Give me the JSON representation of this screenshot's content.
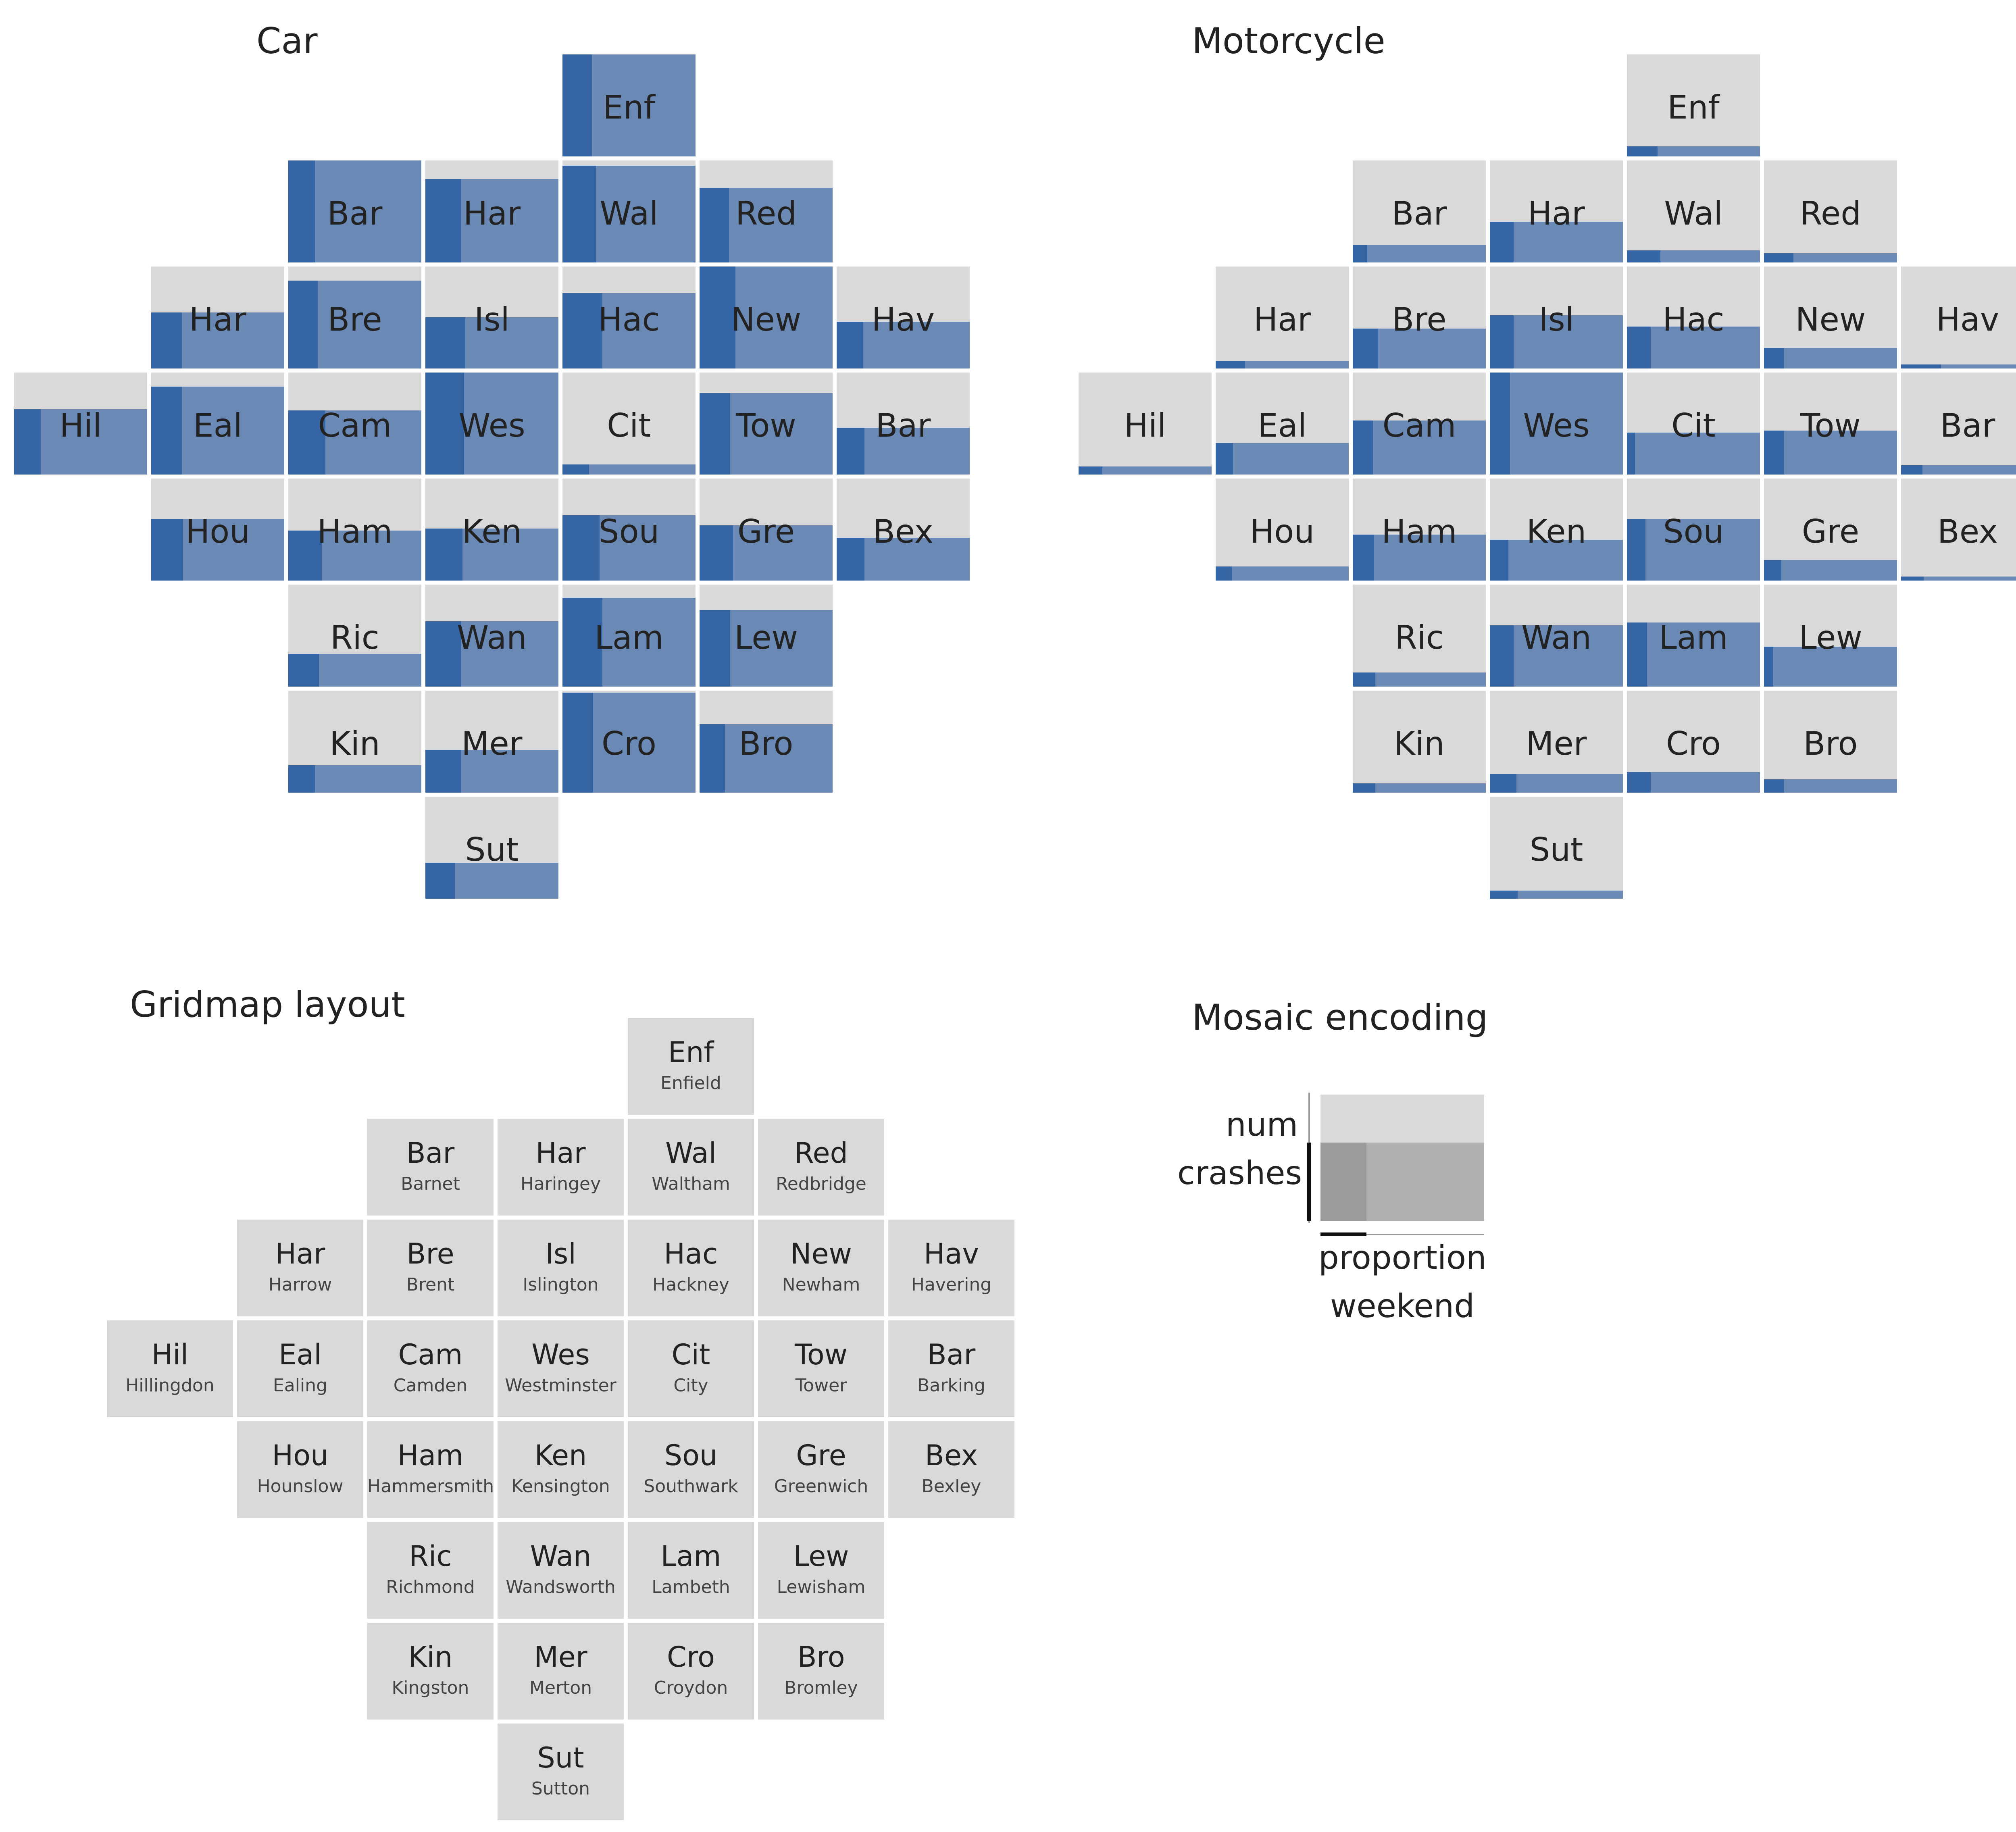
{
  "colors": {
    "tile_background": "#d9d9d9",
    "tile_border": "#ffffff",
    "mosaic_total": "#6a89b5",
    "mosaic_weekend": "#3565a4",
    "legend_total": "#b0b0b0",
    "legend_weekend": "#9b9b9b",
    "text": "#222222"
  },
  "chart_data": [
    {
      "type": "gridmap-mosaic",
      "title": "Car",
      "encoding": {
        "height": "num crashes (relative to max)",
        "width_dark": "proportion weekend"
      },
      "cells": [
        {
          "abbr": "Enf",
          "row": 0,
          "col": 4,
          "num": 1.0,
          "weekend": 0.22
        },
        {
          "abbr": "Bar",
          "row": 1,
          "col": 2,
          "num": 1.0,
          "weekend": 0.2
        },
        {
          "abbr": "Har",
          "row": 1,
          "col": 3,
          "num": 0.82,
          "weekend": 0.27
        },
        {
          "abbr": "Wal",
          "row": 1,
          "col": 4,
          "num": 0.95,
          "weekend": 0.25
        },
        {
          "abbr": "Red",
          "row": 1,
          "col": 5,
          "num": 0.73,
          "weekend": 0.22
        },
        {
          "abbr": "Har",
          "row": 2,
          "col": 1,
          "num": 0.55,
          "weekend": 0.23
        },
        {
          "abbr": "Bre",
          "row": 2,
          "col": 2,
          "num": 0.86,
          "weekend": 0.22
        },
        {
          "abbr": "Isl",
          "row": 2,
          "col": 3,
          "num": 0.5,
          "weekend": 0.3
        },
        {
          "abbr": "Hac",
          "row": 2,
          "col": 4,
          "num": 0.74,
          "weekend": 0.3
        },
        {
          "abbr": "New",
          "row": 2,
          "col": 5,
          "num": 1.0,
          "weekend": 0.27
        },
        {
          "abbr": "Hav",
          "row": 2,
          "col": 6,
          "num": 0.46,
          "weekend": 0.2
        },
        {
          "abbr": "Hil",
          "row": 3,
          "col": 0,
          "num": 0.64,
          "weekend": 0.2
        },
        {
          "abbr": "Eal",
          "row": 3,
          "col": 1,
          "num": 0.86,
          "weekend": 0.23
        },
        {
          "abbr": "Cam",
          "row": 3,
          "col": 2,
          "num": 0.63,
          "weekend": 0.28
        },
        {
          "abbr": "Wes",
          "row": 3,
          "col": 3,
          "num": 1.0,
          "weekend": 0.29
        },
        {
          "abbr": "Cit",
          "row": 3,
          "col": 4,
          "num": 0.1,
          "weekend": 0.2
        },
        {
          "abbr": "Tow",
          "row": 3,
          "col": 5,
          "num": 0.8,
          "weekend": 0.23
        },
        {
          "abbr": "Bar",
          "row": 3,
          "col": 6,
          "num": 0.46,
          "weekend": 0.21
        },
        {
          "abbr": "Hou",
          "row": 4,
          "col": 1,
          "num": 0.6,
          "weekend": 0.24
        },
        {
          "abbr": "Ham",
          "row": 4,
          "col": 2,
          "num": 0.49,
          "weekend": 0.25
        },
        {
          "abbr": "Ken",
          "row": 4,
          "col": 3,
          "num": 0.51,
          "weekend": 0.28
        },
        {
          "abbr": "Sou",
          "row": 4,
          "col": 4,
          "num": 0.64,
          "weekend": 0.28
        },
        {
          "abbr": "Gre",
          "row": 4,
          "col": 5,
          "num": 0.54,
          "weekend": 0.25
        },
        {
          "abbr": "Bex",
          "row": 4,
          "col": 6,
          "num": 0.42,
          "weekend": 0.21
        },
        {
          "abbr": "Ric",
          "row": 5,
          "col": 2,
          "num": 0.32,
          "weekend": 0.23
        },
        {
          "abbr": "Wan",
          "row": 5,
          "col": 3,
          "num": 0.64,
          "weekend": 0.27
        },
        {
          "abbr": "Lam",
          "row": 5,
          "col": 4,
          "num": 0.87,
          "weekend": 0.3
        },
        {
          "abbr": "Lew",
          "row": 5,
          "col": 5,
          "num": 0.75,
          "weekend": 0.23
        },
        {
          "abbr": "Kin",
          "row": 6,
          "col": 2,
          "num": 0.27,
          "weekend": 0.2
        },
        {
          "abbr": "Mer",
          "row": 6,
          "col": 3,
          "num": 0.42,
          "weekend": 0.27
        },
        {
          "abbr": "Cro",
          "row": 6,
          "col": 4,
          "num": 0.98,
          "weekend": 0.23
        },
        {
          "abbr": "Bro",
          "row": 6,
          "col": 5,
          "num": 0.67,
          "weekend": 0.19
        },
        {
          "abbr": "Sut",
          "row": 7,
          "col": 3,
          "num": 0.35,
          "weekend": 0.22
        }
      ]
    },
    {
      "type": "gridmap-mosaic",
      "title": "Motorcycle",
      "encoding": {
        "height": "num crashes (relative to max)",
        "width_dark": "proportion weekend"
      },
      "cells": [
        {
          "abbr": "Enf",
          "row": 0,
          "col": 4,
          "num": 0.1,
          "weekend": 0.23
        },
        {
          "abbr": "Bar",
          "row": 1,
          "col": 2,
          "num": 0.17,
          "weekend": 0.11
        },
        {
          "abbr": "Har",
          "row": 1,
          "col": 3,
          "num": 0.4,
          "weekend": 0.18
        },
        {
          "abbr": "Wal",
          "row": 1,
          "col": 4,
          "num": 0.12,
          "weekend": 0.25
        },
        {
          "abbr": "Red",
          "row": 1,
          "col": 5,
          "num": 0.09,
          "weekend": 0.22
        },
        {
          "abbr": "Har",
          "row": 2,
          "col": 1,
          "num": 0.07,
          "weekend": 0.22
        },
        {
          "abbr": "Bre",
          "row": 2,
          "col": 2,
          "num": 0.39,
          "weekend": 0.19
        },
        {
          "abbr": "Isl",
          "row": 2,
          "col": 3,
          "num": 0.52,
          "weekend": 0.18
        },
        {
          "abbr": "Hac",
          "row": 2,
          "col": 4,
          "num": 0.41,
          "weekend": 0.18
        },
        {
          "abbr": "New",
          "row": 2,
          "col": 5,
          "num": 0.2,
          "weekend": 0.15
        },
        {
          "abbr": "Hav",
          "row": 2,
          "col": 6,
          "num": 0.04,
          "weekend": 0.3
        },
        {
          "abbr": "Hil",
          "row": 3,
          "col": 0,
          "num": 0.08,
          "weekend": 0.18
        },
        {
          "abbr": "Eal",
          "row": 3,
          "col": 1,
          "num": 0.31,
          "weekend": 0.13
        },
        {
          "abbr": "Cam",
          "row": 3,
          "col": 2,
          "num": 0.53,
          "weekend": 0.15
        },
        {
          "abbr": "Wes",
          "row": 3,
          "col": 3,
          "num": 1.0,
          "weekend": 0.15
        },
        {
          "abbr": "Cit",
          "row": 3,
          "col": 4,
          "num": 0.41,
          "weekend": 0.06
        },
        {
          "abbr": "Tow",
          "row": 3,
          "col": 5,
          "num": 0.43,
          "weekend": 0.15
        },
        {
          "abbr": "Bar",
          "row": 3,
          "col": 6,
          "num": 0.09,
          "weekend": 0.16
        },
        {
          "abbr": "Hou",
          "row": 4,
          "col": 1,
          "num": 0.14,
          "weekend": 0.12
        },
        {
          "abbr": "Ham",
          "row": 4,
          "col": 2,
          "num": 0.45,
          "weekend": 0.16
        },
        {
          "abbr": "Ken",
          "row": 4,
          "col": 3,
          "num": 0.4,
          "weekend": 0.14
        },
        {
          "abbr": "Sou",
          "row": 4,
          "col": 4,
          "num": 0.6,
          "weekend": 0.14
        },
        {
          "abbr": "Gre",
          "row": 4,
          "col": 5,
          "num": 0.2,
          "weekend": 0.13
        },
        {
          "abbr": "Bex",
          "row": 4,
          "col": 6,
          "num": 0.04,
          "weekend": 0.17
        },
        {
          "abbr": "Ric",
          "row": 5,
          "col": 2,
          "num": 0.14,
          "weekend": 0.17
        },
        {
          "abbr": "Wan",
          "row": 5,
          "col": 3,
          "num": 0.6,
          "weekend": 0.18
        },
        {
          "abbr": "Lam",
          "row": 5,
          "col": 4,
          "num": 0.63,
          "weekend": 0.15
        },
        {
          "abbr": "Lew",
          "row": 5,
          "col": 5,
          "num": 0.39,
          "weekend": 0.07
        },
        {
          "abbr": "Kin",
          "row": 6,
          "col": 2,
          "num": 0.09,
          "weekend": 0.17
        },
        {
          "abbr": "Mer",
          "row": 6,
          "col": 3,
          "num": 0.18,
          "weekend": 0.2
        },
        {
          "abbr": "Cro",
          "row": 6,
          "col": 4,
          "num": 0.2,
          "weekend": 0.18
        },
        {
          "abbr": "Bro",
          "row": 6,
          "col": 5,
          "num": 0.13,
          "weekend": 0.15
        },
        {
          "abbr": "Sut",
          "row": 7,
          "col": 3,
          "num": 0.08,
          "weekend": 0.21
        }
      ]
    }
  ],
  "layout_panel": {
    "title": "Gridmap layout",
    "cells": [
      {
        "abbr": "Enf",
        "name": "Enfield",
        "row": 0,
        "col": 4
      },
      {
        "abbr": "Bar",
        "name": "Barnet",
        "row": 1,
        "col": 2
      },
      {
        "abbr": "Har",
        "name": "Haringey",
        "row": 1,
        "col": 3
      },
      {
        "abbr": "Wal",
        "name": "Waltham",
        "row": 1,
        "col": 4
      },
      {
        "abbr": "Red",
        "name": "Redbridge",
        "row": 1,
        "col": 5
      },
      {
        "abbr": "Har",
        "name": "Harrow",
        "row": 2,
        "col": 1
      },
      {
        "abbr": "Bre",
        "name": "Brent",
        "row": 2,
        "col": 2
      },
      {
        "abbr": "Isl",
        "name": "Islington",
        "row": 2,
        "col": 3
      },
      {
        "abbr": "Hac",
        "name": "Hackney",
        "row": 2,
        "col": 4
      },
      {
        "abbr": "New",
        "name": "Newham",
        "row": 2,
        "col": 5
      },
      {
        "abbr": "Hav",
        "name": "Havering",
        "row": 2,
        "col": 6
      },
      {
        "abbr": "Hil",
        "name": "Hillingdon",
        "row": 3,
        "col": 0
      },
      {
        "abbr": "Eal",
        "name": "Ealing",
        "row": 3,
        "col": 1
      },
      {
        "abbr": "Cam",
        "name": "Camden",
        "row": 3,
        "col": 2
      },
      {
        "abbr": "Wes",
        "name": "Westminster",
        "row": 3,
        "col": 3
      },
      {
        "abbr": "Cit",
        "name": "City",
        "row": 3,
        "col": 4
      },
      {
        "abbr": "Tow",
        "name": "Tower",
        "row": 3,
        "col": 5
      },
      {
        "abbr": "Bar",
        "name": "Barking",
        "row": 3,
        "col": 6
      },
      {
        "abbr": "Hou",
        "name": "Hounslow",
        "row": 4,
        "col": 1
      },
      {
        "abbr": "Ham",
        "name": "Hammersmith",
        "row": 4,
        "col": 2
      },
      {
        "abbr": "Ken",
        "name": "Kensington",
        "row": 4,
        "col": 3
      },
      {
        "abbr": "Sou",
        "name": "Southwark",
        "row": 4,
        "col": 4
      },
      {
        "abbr": "Gre",
        "name": "Greenwich",
        "row": 4,
        "col": 5
      },
      {
        "abbr": "Bex",
        "name": "Bexley",
        "row": 4,
        "col": 6
      },
      {
        "abbr": "Ric",
        "name": "Richmond",
        "row": 5,
        "col": 2
      },
      {
        "abbr": "Wan",
        "name": "Wandsworth",
        "row": 5,
        "col": 3
      },
      {
        "abbr": "Lam",
        "name": "Lambeth",
        "row": 5,
        "col": 4
      },
      {
        "abbr": "Lew",
        "name": "Lewisham",
        "row": 5,
        "col": 5
      },
      {
        "abbr": "Kin",
        "name": "Kingston",
        "row": 6,
        "col": 2
      },
      {
        "abbr": "Mer",
        "name": "Merton",
        "row": 6,
        "col": 3
      },
      {
        "abbr": "Cro",
        "name": "Croydon",
        "row": 6,
        "col": 4
      },
      {
        "abbr": "Bro",
        "name": "Bromley",
        "row": 6,
        "col": 5
      },
      {
        "abbr": "Sut",
        "name": "Sutton",
        "row": 7,
        "col": 3
      }
    ]
  },
  "legend": {
    "title": "Mosaic encoding",
    "y_label_line1": "num",
    "y_label_line2": "crashes",
    "x_label_line1": "proportion",
    "x_label_line2": "weekend",
    "example_num": 0.62,
    "example_weekend": 0.28
  }
}
